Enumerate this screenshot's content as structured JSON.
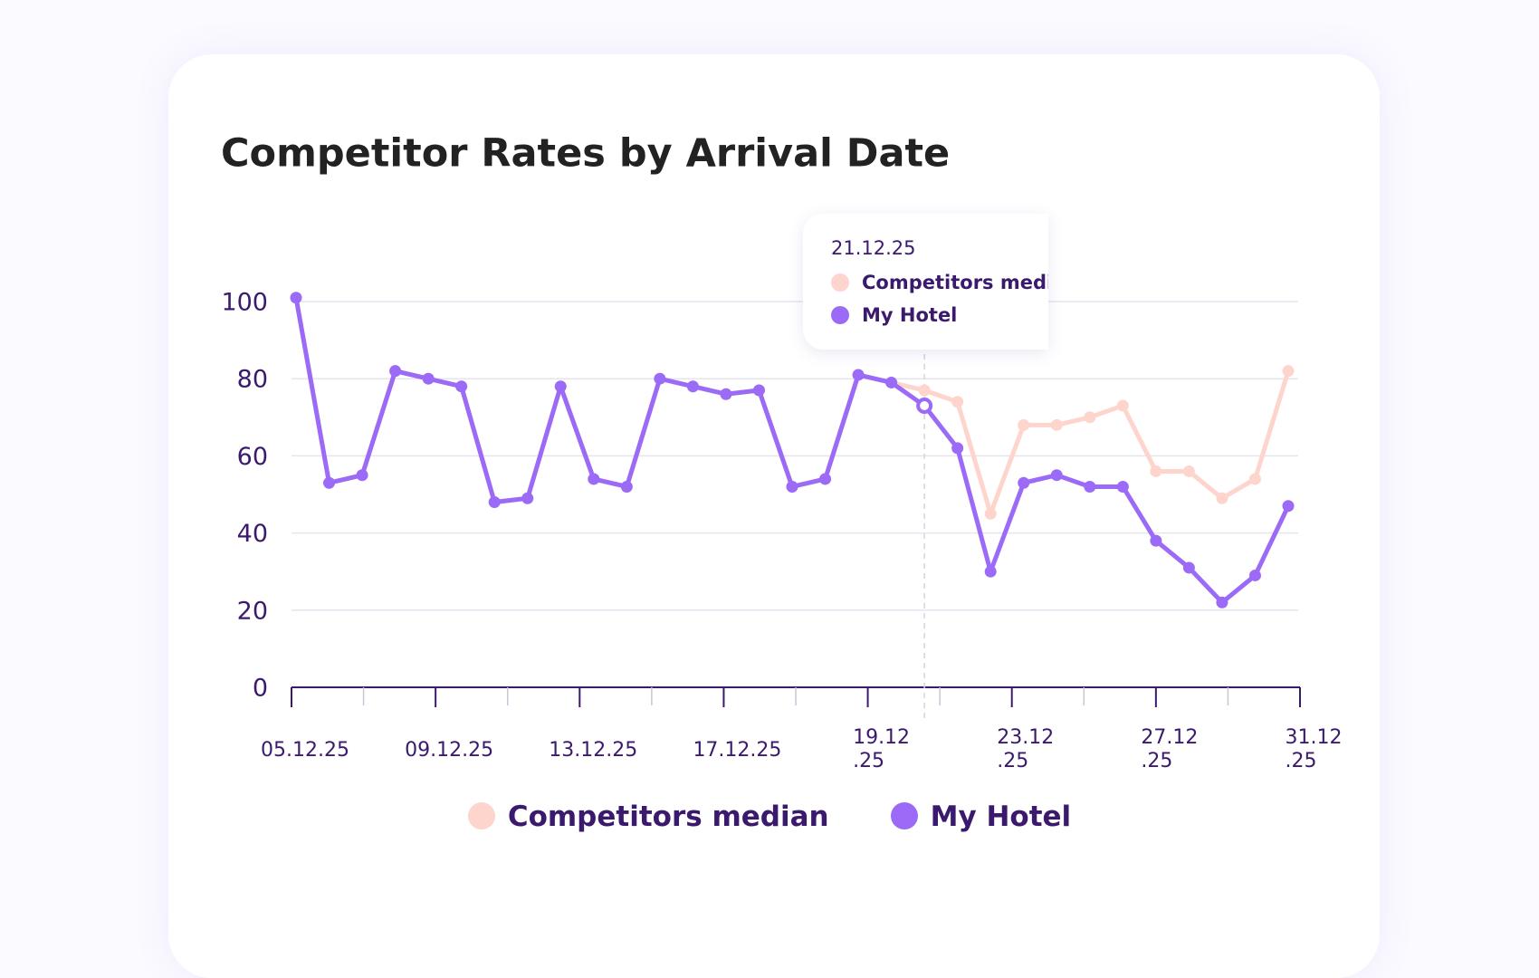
{
  "chart_data": {
    "type": "line",
    "title": "Competitor Rates by Arrival Date",
    "xtick_labels": [
      "05.12.25",
      "09.12.25",
      "13.12.25",
      "17.12.25",
      "19.12\n.25",
      "23.12\n.25",
      "27.12\n.25",
      "31.12\n.25"
    ],
    "series": [
      {
        "name": "Competitors median",
        "color": "#fdd5cc",
        "values": [
          101,
          53,
          55,
          82,
          80,
          78,
          48,
          49,
          78,
          54,
          52,
          80,
          78,
          76,
          77,
          52,
          54,
          81,
          79,
          77,
          74,
          45,
          68,
          68,
          70,
          73,
          56,
          56,
          49,
          54,
          82
        ]
      },
      {
        "name": "My Hotel",
        "color": "#9b6bf7",
        "values": [
          101,
          53,
          55,
          82,
          80,
          78,
          48,
          49,
          78,
          54,
          52,
          80,
          78,
          76,
          77,
          52,
          54,
          81,
          79,
          73,
          62,
          30,
          53,
          55,
          52,
          52,
          38,
          31,
          22,
          29,
          47
        ]
      }
    ],
    "ylim": [
      0,
      100
    ],
    "yticks": [
      0,
      20,
      40,
      60,
      80,
      100
    ],
    "grid": true,
    "tooltip": {
      "date": "21.12.25",
      "index": 19
    }
  }
}
